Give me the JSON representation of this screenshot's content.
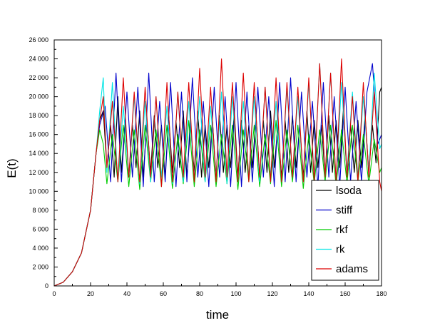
{
  "chart_data": {
    "type": "line",
    "title": "",
    "xlabel": "time",
    "ylabel": "E(t)",
    "xlim": [
      0,
      180
    ],
    "ylim": [
      0,
      26000
    ],
    "x_ticks": [
      0,
      20,
      40,
      60,
      80,
      100,
      120,
      140,
      160,
      180
    ],
    "x_tick_labels": [
      "0",
      "20",
      "40",
      "60",
      "80",
      "100",
      "120",
      "140",
      "160",
      "180"
    ],
    "y_ticks": [
      0,
      2000,
      4000,
      6000,
      8000,
      10000,
      12000,
      14000,
      16000,
      18000,
      20000,
      22000,
      24000,
      26000
    ],
    "y_tick_labels": [
      "0",
      "2 000",
      "4 000",
      "6 000",
      "8 000",
      "10 000",
      "12 000",
      "14 000",
      "16 000",
      "18 000",
      "20 000",
      "22 000",
      "24 000",
      "26 000"
    ],
    "legend_position": "bottom-right",
    "grid": false,
    "series": [
      {
        "name": "lsoda",
        "color": "#000000",
        "x": [
          0,
          5,
          10,
          15,
          20,
          23,
          25,
          27,
          29,
          31,
          33,
          35,
          37,
          39,
          41,
          43,
          45,
          47,
          49,
          51,
          53,
          55,
          57,
          59,
          61,
          63,
          65,
          67,
          69,
          71,
          73,
          75,
          77,
          79,
          81,
          83,
          85,
          87,
          89,
          91,
          93,
          95,
          97,
          99,
          101,
          103,
          105,
          107,
          109,
          111,
          113,
          115,
          117,
          119,
          121,
          123,
          125,
          127,
          129,
          131,
          133,
          135,
          137,
          139,
          141,
          143,
          145,
          147,
          149,
          151,
          153,
          155,
          157,
          159,
          161,
          163,
          165,
          167,
          169,
          171,
          173,
          175,
          177,
          179,
          180
        ],
        "y": [
          0,
          400,
          1500,
          3500,
          8000,
          14000,
          17500,
          18500,
          12500,
          17000,
          11500,
          20000,
          12000,
          17500,
          11500,
          17000,
          12500,
          18500,
          11500,
          17500,
          12000,
          18000,
          12500,
          17000,
          11500,
          18000,
          12000,
          17500,
          12500,
          18500,
          11500,
          17000,
          12000,
          18500,
          11500,
          17000,
          12500,
          17500,
          11500,
          18000,
          12000,
          17000,
          12500,
          18500,
          11500,
          17500,
          12000,
          17000,
          12500,
          18000,
          11500,
          17500,
          12000,
          18500,
          12500,
          17000,
          11500,
          17500,
          12000,
          18000,
          12500,
          17000,
          11500,
          18500,
          12000,
          17500,
          12500,
          17000,
          11500,
          18000,
          12000,
          17500,
          12500,
          18500,
          11500,
          17000,
          12000,
          17500,
          12500,
          18000,
          12000,
          17000,
          13000,
          20500,
          21000
        ]
      },
      {
        "name": "stiff",
        "color": "#0000cc",
        "x": [
          0,
          5,
          10,
          15,
          20,
          23,
          25,
          28,
          31,
          34,
          37,
          40,
          43,
          46,
          49,
          52,
          55,
          58,
          61,
          64,
          67,
          70,
          73,
          76,
          79,
          82,
          85,
          88,
          91,
          94,
          97,
          100,
          103,
          106,
          109,
          112,
          115,
          118,
          121,
          124,
          127,
          130,
          133,
          136,
          139,
          142,
          145,
          148,
          151,
          154,
          157,
          160,
          163,
          166,
          169,
          172,
          175,
          178,
          180
        ],
        "y": [
          0,
          400,
          1500,
          3500,
          8000,
          14000,
          17000,
          19000,
          11000,
          22500,
          11000,
          20500,
          11500,
          21000,
          10500,
          22500,
          11000,
          19500,
          11000,
          21500,
          10500,
          20500,
          11000,
          22000,
          11500,
          19500,
          10500,
          21000,
          11500,
          20000,
          10500,
          21500,
          10500,
          20500,
          11000,
          21000,
          11500,
          20000,
          10500,
          21500,
          11000,
          22000,
          11000,
          20500,
          11500,
          19500,
          10500,
          21500,
          11500,
          20000,
          10500,
          21000,
          11000,
          19500,
          11000,
          20500,
          23500,
          15000,
          16000
        ]
      },
      {
        "name": "rkf",
        "color": "#00cc00",
        "x": [
          0,
          5,
          10,
          15,
          20,
          23,
          25,
          27,
          29,
          32,
          35,
          38,
          41,
          44,
          47,
          50,
          53,
          56,
          59,
          62,
          65,
          68,
          71,
          74,
          77,
          80,
          83,
          86,
          89,
          92,
          95,
          98,
          101,
          104,
          107,
          110,
          113,
          116,
          119,
          122,
          125,
          128,
          131,
          134,
          137,
          140,
          143,
          146,
          149,
          152,
          155,
          158,
          161,
          164,
          167,
          170,
          173,
          176,
          179,
          180
        ],
        "y": [
          0,
          400,
          1500,
          3500,
          8000,
          14000,
          16500,
          15000,
          10800,
          16000,
          11000,
          17000,
          10500,
          16500,
          10200,
          17000,
          11000,
          16500,
          10500,
          17000,
          10300,
          16000,
          10800,
          17500,
          10500,
          16500,
          11000,
          17000,
          10500,
          16000,
          10800,
          17000,
          10200,
          16500,
          11000,
          17000,
          10500,
          16000,
          10800,
          17500,
          10500,
          16500,
          11000,
          17000,
          10300,
          16000,
          10800,
          16500,
          11000,
          17000,
          10500,
          16500,
          10800,
          17000,
          11000,
          16000,
          10800,
          15500,
          12000,
          12500
        ]
      },
      {
        "name": "rk",
        "color": "#00e5e5",
        "x": [
          0,
          5,
          10,
          15,
          20,
          23,
          25,
          27,
          29,
          32,
          35,
          38,
          41,
          44,
          47,
          50,
          53,
          56,
          59,
          62,
          65,
          68,
          71,
          74,
          77,
          80,
          83,
          86,
          89,
          92,
          95,
          98,
          101,
          104,
          107,
          110,
          113,
          116,
          119,
          122,
          125,
          128,
          131,
          134,
          137,
          140,
          143,
          146,
          149,
          152,
          155,
          158,
          161,
          164,
          167,
          170,
          173,
          176,
          179,
          180
        ],
        "y": [
          0,
          400,
          1500,
          3500,
          8000,
          14000,
          18500,
          22000,
          12000,
          21500,
          11000,
          19000,
          11500,
          20000,
          10800,
          19500,
          11000,
          20000,
          11500,
          19000,
          10800,
          20500,
          11000,
          19500,
          11500,
          20000,
          11000,
          19000,
          11500,
          20500,
          10800,
          20000,
          11000,
          19500,
          11500,
          20000,
          11000,
          21000,
          11500,
          19500,
          11000,
          21000,
          11500,
          20000,
          11000,
          21500,
          11500,
          23500,
          11500,
          22500,
          11000,
          21500,
          12000,
          20500,
          11500,
          20000,
          12000,
          22500,
          14500,
          15000
        ]
      },
      {
        "name": "adams",
        "color": "#dd0000",
        "x": [
          0,
          5,
          10,
          15,
          20,
          23,
          25,
          27,
          29,
          32,
          35,
          38,
          41,
          44,
          47,
          50,
          53,
          56,
          59,
          62,
          65,
          68,
          71,
          74,
          77,
          80,
          83,
          86,
          89,
          92,
          95,
          98,
          101,
          104,
          107,
          110,
          113,
          116,
          119,
          122,
          125,
          128,
          131,
          134,
          137,
          140,
          143,
          146,
          149,
          152,
          155,
          158,
          161,
          164,
          167,
          170,
          173,
          176,
          179,
          180
        ],
        "y": [
          0,
          400,
          1500,
          3500,
          8000,
          14000,
          17500,
          20000,
          12500,
          19500,
          11000,
          22000,
          11500,
          20500,
          11000,
          21000,
          11500,
          20000,
          10500,
          21500,
          11000,
          20500,
          11500,
          21500,
          11000,
          23000,
          11500,
          21000,
          11000,
          24000,
          11500,
          21500,
          11000,
          22500,
          11000,
          21500,
          11500,
          21000,
          11000,
          22000,
          11000,
          21500,
          11500,
          21000,
          11000,
          22000,
          11000,
          23500,
          11500,
          22500,
          11000,
          24000,
          11500,
          20000,
          11000,
          21500,
          11500,
          20500,
          11000,
          10000
        ]
      }
    ]
  }
}
